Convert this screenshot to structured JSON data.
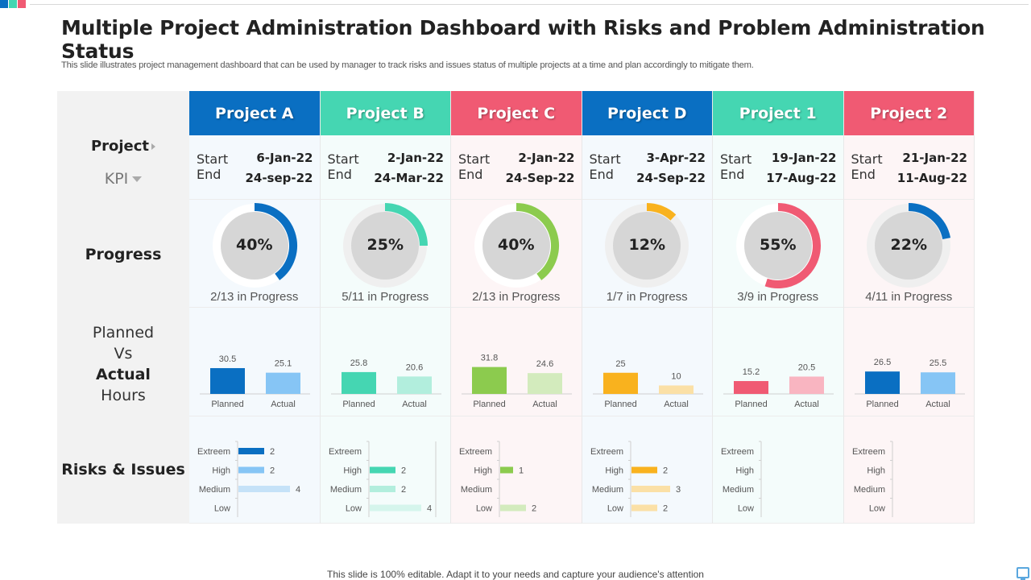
{
  "decor_colors": [
    "#0a6fc2",
    "#45d6b2",
    "#f05a73"
  ],
  "title": "Multiple Project Administration Dashboard with Risks and Problem Administration Status",
  "subtitle": "This slide illustrates project management dashboard that can be used by manager to track risks and issues status of multiple projects at a time and plan accordingly to mitigate them.",
  "kpi": {
    "project": "Project",
    "kpi": "KPI",
    "progress": "Progress",
    "pva_line1": "Planned",
    "pva_line2": "Vs",
    "pva_line3": "Actual",
    "pva_line4": "Hours",
    "risks": "Risks & Issues"
  },
  "labels": {
    "start": "Start",
    "end": "End",
    "planned": "Planned",
    "actual": "Actual",
    "risk_levels": [
      "Extreem",
      "High",
      "Medium",
      "Low"
    ]
  },
  "chart_data": [
    {
      "type": "bar",
      "title": "Planned Vs Actual Hours",
      "categories": [
        "Project A",
        "Project B",
        "Project C",
        "Project D",
        "Project 1",
        "Project 2"
      ],
      "series": [
        {
          "name": "Planned",
          "values": [
            30.5,
            25.8,
            31.8,
            25,
            15.2,
            26.5
          ]
        },
        {
          "name": "Actual",
          "values": [
            25.1,
            20.6,
            24.6,
            10,
            20.5,
            25.5
          ]
        }
      ]
    },
    {
      "type": "bar",
      "title": "Risks & Issues",
      "orientation": "horizontal",
      "categories": [
        "Extreem",
        "High",
        "Medium",
        "Low"
      ],
      "series": [
        {
          "name": "Project A",
          "values": [
            2,
            2,
            4,
            null
          ]
        },
        {
          "name": "Project B",
          "values": [
            null,
            2,
            2,
            4
          ]
        },
        {
          "name": "Project C",
          "values": [
            null,
            1,
            null,
            2
          ]
        },
        {
          "name": "Project D",
          "values": [
            null,
            2,
            3,
            2
          ]
        },
        {
          "name": "Project 1",
          "values": [
            null,
            null,
            null,
            null
          ]
        },
        {
          "name": "Project 2",
          "values": [
            null,
            null,
            null,
            null
          ]
        }
      ]
    }
  ],
  "projects": [
    {
      "name": "Project A",
      "color": "#0a6fc2",
      "bg": "#f4f9fd",
      "start": "6-Jan-22",
      "end": "24-sep-22",
      "progress_pct": 40,
      "progress_label": "40%",
      "progress_caption": "2/13 in Progress",
      "ring_color": "#0a6fc2",
      "track_color": "#ffffff",
      "planned": 30.5,
      "actual": 25.1,
      "planned_label": "30.5",
      "actual_label": "25.1",
      "planned_color": "#0a6fc2",
      "actual_color": "#86c5f5",
      "risks": [
        2,
        2,
        4,
        null
      ],
      "risk_labels": [
        "2",
        "2",
        "4",
        ""
      ],
      "risk_colors": [
        "#0a6fc2",
        "#86c5f5",
        "#c5e2f8",
        "#c5e2f8"
      ]
    },
    {
      "name": "Project B",
      "color": "#45d6b2",
      "bg": "#f4fcfb",
      "start": "2-Jan-22",
      "end": "24-Mar-22",
      "progress_pct": 25,
      "progress_label": "25%",
      "progress_caption": "5/11 in Progress",
      "ring_color": "#45d6b2",
      "track_color": "#efefef",
      "planned": 25.8,
      "actual": 20.6,
      "planned_label": "25.8",
      "actual_label": "20.6",
      "planned_color": "#45d6b2",
      "actual_color": "#b2eedd",
      "risks": [
        null,
        2,
        2,
        4
      ],
      "risk_labels": [
        "",
        "2",
        "2",
        "4"
      ],
      "risk_colors": [
        "#45d6b2",
        "#45d6b2",
        "#b2eedd",
        "#d5f5ec"
      ]
    },
    {
      "name": "Project C",
      "color": "#f05a73",
      "bg": "#fdf5f6",
      "start": "2-Jan-22",
      "end": "24-Sep-22",
      "progress_pct": 40,
      "progress_label": "40%",
      "progress_caption": "2/13 in Progress",
      "ring_color": "#8ccb4e",
      "track_color": "#ffffff",
      "planned": 31.8,
      "actual": 24.6,
      "planned_label": "31.8",
      "actual_label": "24.6",
      "planned_color": "#8ccb4e",
      "actual_color": "#d3ebbd",
      "risks": [
        null,
        1,
        null,
        2
      ],
      "risk_labels": [
        "",
        "1",
        "",
        "2"
      ],
      "risk_colors": [
        "#8ccb4e",
        "#8ccb4e",
        "#d3ebbd",
        "#d3ebbd"
      ]
    },
    {
      "name": "Project D",
      "color": "#0a6fc2",
      "bg": "#f4f9fd",
      "start": "3-Apr-22",
      "end": "24-Sep-22",
      "progress_pct": 12,
      "progress_label": "12%",
      "progress_caption": "1/7 in Progress",
      "ring_color": "#f9b21e",
      "track_color": "#efefef",
      "planned": 25,
      "actual": 10,
      "planned_label": "25",
      "actual_label": "10",
      "planned_color": "#f9b21e",
      "actual_color": "#fbe0a6",
      "risks": [
        null,
        2,
        3,
        2
      ],
      "risk_labels": [
        "",
        "2",
        "3",
        "2"
      ],
      "risk_colors": [
        "#f9b21e",
        "#f9b21e",
        "#fbe0a6",
        "#fbe0a6"
      ]
    },
    {
      "name": "Project 1",
      "color": "#45d6b2",
      "bg": "#f4fcfb",
      "start": "19-Jan-22",
      "end": "17-Aug-22",
      "progress_pct": 55,
      "progress_label": "55%",
      "progress_caption": "3/9 in Progress",
      "ring_color": "#f05a73",
      "track_color": "#ffffff",
      "planned": 15.2,
      "actual": 20.5,
      "planned_label": "15.2",
      "actual_label": "20.5",
      "planned_color": "#f05a73",
      "actual_color": "#f9b5c1",
      "risks": [
        null,
        null,
        null,
        null
      ],
      "risk_labels": [
        "",
        "",
        "",
        ""
      ],
      "risk_colors": [
        "#f05a73",
        "#f05a73",
        "#f9b5c1",
        "#f9b5c1"
      ]
    },
    {
      "name": "Project 2",
      "color": "#f05a73",
      "bg": "#fdf5f6",
      "start": "21-Jan-22",
      "end": "11-Aug-22",
      "progress_pct": 22,
      "progress_label": "22%",
      "progress_caption": "4/11 in Progress",
      "ring_color": "#0a6fc2",
      "track_color": "#efefef",
      "planned": 26.5,
      "actual": 25.5,
      "planned_label": "26.5",
      "actual_label": "25.5",
      "planned_color": "#0a6fc2",
      "actual_color": "#86c5f5",
      "risks": [
        null,
        null,
        null,
        null
      ],
      "risk_labels": [
        "",
        "",
        "",
        ""
      ],
      "risk_colors": [
        "#0a6fc2",
        "#0a6fc2",
        "#86c5f5",
        "#86c5f5"
      ]
    }
  ],
  "footer": "This slide is 100% editable. Adapt it to your needs and capture your audience's attention"
}
